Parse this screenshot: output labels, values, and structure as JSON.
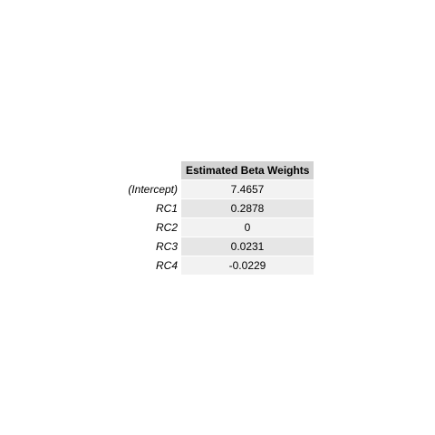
{
  "chart_data": {
    "type": "table",
    "title": "",
    "column_header": "Estimated Beta Weights",
    "rows": [
      {
        "label": "(Intercept)",
        "value": "7.4657"
      },
      {
        "label": "RC1",
        "value": "0.2878"
      },
      {
        "label": "RC2",
        "value": "0"
      },
      {
        "label": "RC3",
        "value": "0.0231"
      },
      {
        "label": "RC4",
        "value": "-0.0229"
      }
    ]
  },
  "colors": {
    "header_bg": "#d3d3d3",
    "row_light": "#f2f2f2",
    "row_dark": "#e6e6e6"
  }
}
